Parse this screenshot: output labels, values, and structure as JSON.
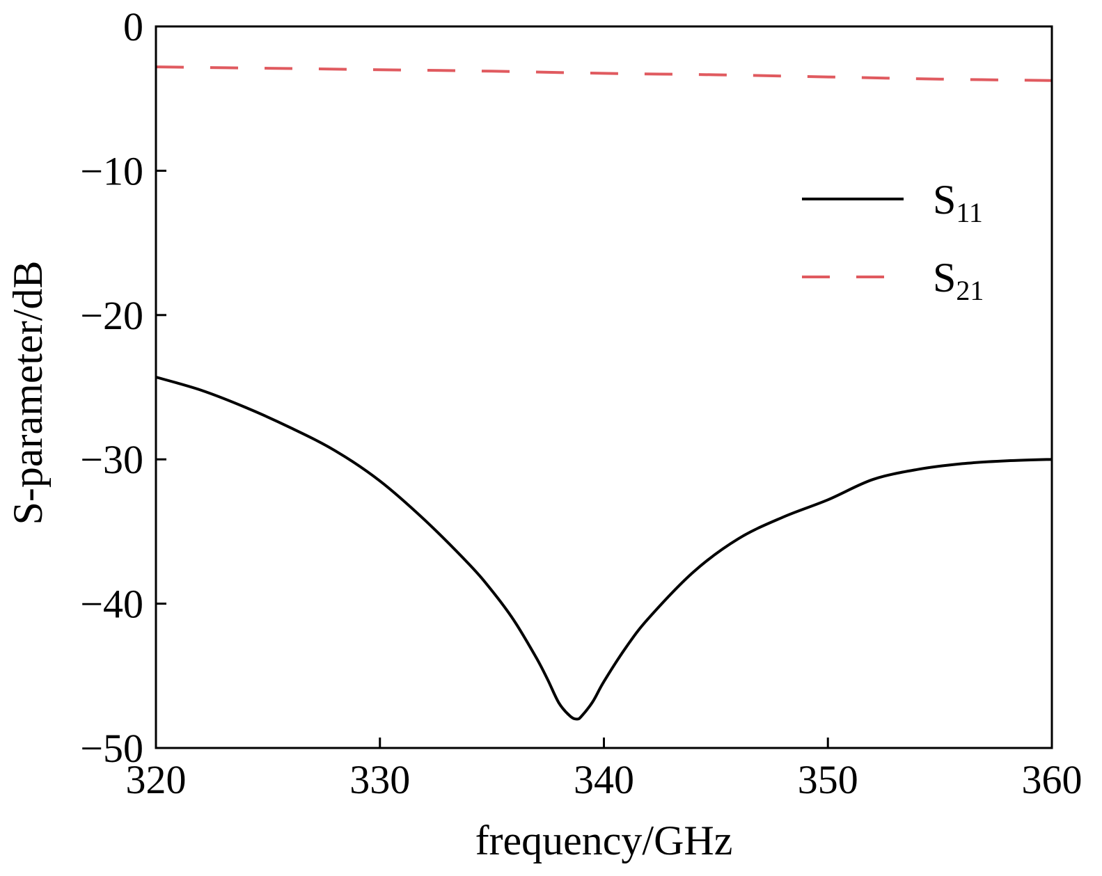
{
  "chart_data": {
    "type": "line",
    "xlabel": "frequency/GHz",
    "ylabel": "S-parameter/dB",
    "xlim": [
      320,
      360
    ],
    "ylim": [
      -50,
      0
    ],
    "xticks": [
      "320",
      "330",
      "340",
      "350",
      "360"
    ],
    "yticks": [
      "0",
      "−10",
      "−20",
      "−30",
      "−40",
      "−50"
    ],
    "grid": false,
    "legend_position": "upper-right",
    "series": [
      {
        "name": "S11",
        "name_base": "S",
        "name_sub": "11",
        "color": "#000000",
        "style": "solid",
        "x": [
          320,
          322,
          324,
          326,
          328,
          330,
          332,
          334,
          335,
          336,
          337,
          337.5,
          338,
          338.5,
          338.8,
          339,
          339.5,
          340,
          341,
          342,
          344,
          346,
          348,
          350,
          352,
          354,
          356,
          358,
          360
        ],
        "y": [
          -24.3,
          -25.2,
          -26.4,
          -27.8,
          -29.4,
          -31.5,
          -34.2,
          -37.3,
          -39.1,
          -41.2,
          -43.8,
          -45.3,
          -46.9,
          -47.8,
          -48.0,
          -47.8,
          -46.8,
          -45.4,
          -43.0,
          -41.0,
          -37.8,
          -35.5,
          -34.0,
          -32.8,
          -31.4,
          -30.7,
          -30.3,
          -30.1,
          -30.0
        ]
      },
      {
        "name": "S21",
        "name_base": "S",
        "name_sub": "21",
        "color": "#e05a5f",
        "style": "dashed",
        "x": [
          320,
          325,
          330,
          335,
          340,
          345,
          350,
          355,
          360
        ],
        "y": [
          -2.8,
          -2.9,
          -3.0,
          -3.1,
          -3.25,
          -3.35,
          -3.5,
          -3.65,
          -3.75
        ]
      }
    ]
  }
}
